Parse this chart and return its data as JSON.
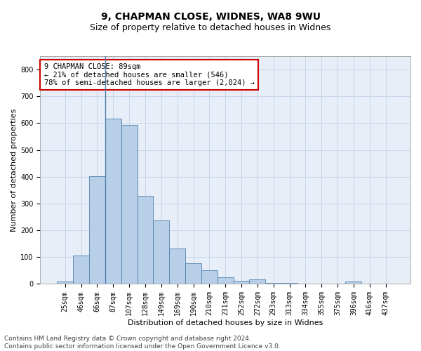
{
  "title1": "9, CHAPMAN CLOSE, WIDNES, WA8 9WU",
  "title2": "Size of property relative to detached houses in Widnes",
  "xlabel": "Distribution of detached houses by size in Widnes",
  "ylabel": "Number of detached properties",
  "footer1": "Contains HM Land Registry data © Crown copyright and database right 2024.",
  "footer2": "Contains public sector information licensed under the Open Government Licence v3.0.",
  "annotation_line1": "9 CHAPMAN CLOSE: 89sqm",
  "annotation_line2": "← 21% of detached houses are smaller (546)",
  "annotation_line3": "78% of semi-detached houses are larger (2,024) →",
  "bar_categories": [
    "25sqm",
    "46sqm",
    "66sqm",
    "87sqm",
    "107sqm",
    "128sqm",
    "149sqm",
    "169sqm",
    "190sqm",
    "210sqm",
    "231sqm",
    "252sqm",
    "272sqm",
    "293sqm",
    "313sqm",
    "334sqm",
    "355sqm",
    "375sqm",
    "396sqm",
    "416sqm",
    "437sqm"
  ],
  "bar_values": [
    8,
    107,
    403,
    617,
    592,
    330,
    237,
    133,
    77,
    51,
    25,
    13,
    16,
    4,
    3,
    0,
    0,
    0,
    8,
    0,
    0
  ],
  "bar_color": "#b8cfe8",
  "bar_edge_color": "#5080b0",
  "vline_color": "#5080b0",
  "ylim": [
    0,
    850
  ],
  "yticks": [
    0,
    100,
    200,
    300,
    400,
    500,
    600,
    700,
    800
  ],
  "grid_color": "#c8d4e8",
  "bg_color": "#e8eef8",
  "annotation_box_facecolor": "#ffffff",
  "annotation_border_color": "#cc0000",
  "title1_fontsize": 10,
  "title2_fontsize": 9,
  "axis_label_fontsize": 8,
  "tick_fontsize": 7,
  "annotation_fontsize": 7.5,
  "footer_fontsize": 6.5
}
